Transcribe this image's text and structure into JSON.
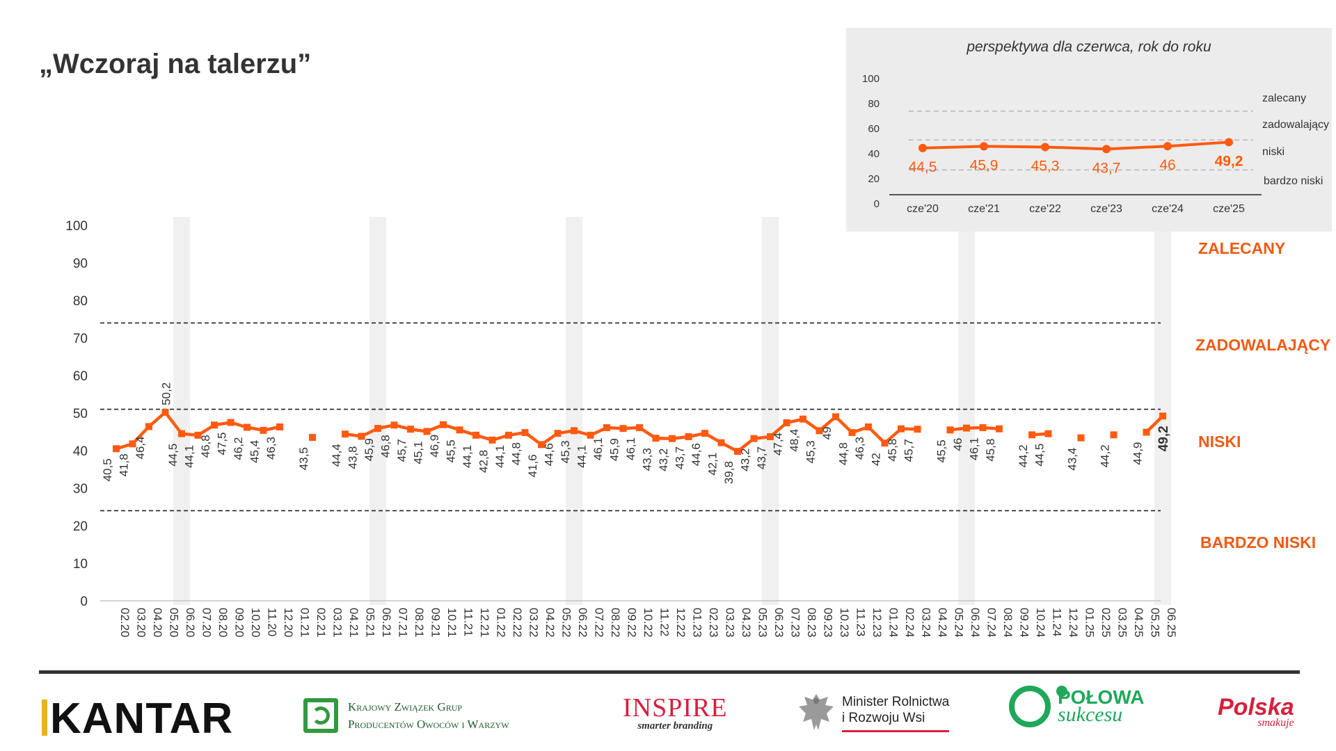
{
  "title": "„Wczoraj na talerzu”",
  "zones": {
    "zalecany": "ZALECANY",
    "zadowalajacy": "ZADOWALAJĄCY",
    "niski": "NISKI",
    "bardzo_niski": "BARDZO NISKI"
  },
  "colors": {
    "series": "#ff5a10",
    "zone_text": "#f05a12",
    "highlight_band": "#f0f0f0",
    "inset_bg": "#ececec"
  },
  "chart_data": [
    {
      "type": "line",
      "categories": [
        "02.20",
        "03.20",
        "04.20",
        "05.20",
        "06.20",
        "07.20",
        "08.20",
        "09.20",
        "10.20",
        "11.20",
        "12.20",
        "01.21",
        "02.21",
        "03.21",
        "04.21",
        "05.21",
        "06.21",
        "07.21",
        "08.21",
        "09.21",
        "10.21",
        "11.21",
        "12.21",
        "01.22",
        "02.22",
        "03.22",
        "04.22",
        "05.22",
        "06.22",
        "07.22",
        "08.22",
        "09.22",
        "10.22",
        "11.22",
        "12.22",
        "01.23",
        "02.23",
        "03.23",
        "04.23",
        "05.23",
        "06.23",
        "07.23",
        "08.23",
        "09.23",
        "10.23",
        "11.23",
        "12.23",
        "01.24",
        "02.24",
        "03.24",
        "04.24",
        "05.24",
        "06.24",
        "07.24",
        "08.24",
        "09.24",
        "10.24",
        "11.24",
        "12.24",
        "01.25",
        "02.25",
        "03.25",
        "04.25",
        "05.25",
        "06.25"
      ],
      "values": [
        40.5,
        41.8,
        46.4,
        50.2,
        44.5,
        44.1,
        46.8,
        47.5,
        46.2,
        45.4,
        46.3,
        null,
        43.5,
        null,
        44.4,
        43.8,
        45.9,
        46.8,
        45.7,
        45.1,
        46.9,
        45.5,
        44.1,
        42.8,
        44.1,
        44.8,
        41.6,
        44.6,
        45.3,
        44.1,
        46.1,
        45.9,
        46.1,
        43.3,
        43.2,
        43.7,
        44.6,
        42.1,
        39.8,
        43.2,
        43.7,
        47.4,
        48.4,
        45.3,
        49,
        44.8,
        46.3,
        42,
        45.8,
        45.7,
        null,
        45.5,
        46,
        46.1,
        45.8,
        null,
        44.2,
        44.5,
        null,
        43.4,
        null,
        44.2,
        null,
        44.9,
        49.2
      ],
      "labels": [
        "40,5",
        "41,8",
        "46,4",
        "50,2",
        "44,5",
        "44,1",
        "46,8",
        "47,5",
        "46,2",
        "45,4",
        "46,3",
        "",
        "43,5",
        "",
        "44,4",
        "43,8",
        "45,9",
        "46,8",
        "45,7",
        "45,1",
        "46,9",
        "45,5",
        "44,1",
        "42,8",
        "44,1",
        "44,8",
        "41,6",
        "44,6",
        "45,3",
        "44,1",
        "46,1",
        "45,9",
        "46,1",
        "43,3",
        "43,2",
        "43,7",
        "44,6",
        "42,1",
        "39,8",
        "43,2",
        "43,7",
        "47,4",
        "48,4",
        "45,3",
        "49",
        "44,8",
        "46,3",
        "42",
        "45,8",
        "45,7",
        "",
        "45,5",
        "46",
        "46,1",
        "45,8",
        "",
        "44,2",
        "44,5",
        "",
        "43,4",
        "",
        "44,2",
        "",
        "44,9",
        "49,2"
      ],
      "highlight_categories": [
        "06.20",
        "06.21",
        "06.22",
        "06.23",
        "06.24",
        "06.25"
      ],
      "reference_lines": [
        24,
        51,
        74
      ],
      "ylim": [
        0,
        100
      ],
      "yticks": [
        0,
        10,
        20,
        30,
        40,
        50,
        60,
        70,
        80,
        90,
        100
      ],
      "xlabel": "",
      "ylabel": "",
      "grid": false
    },
    {
      "type": "line",
      "title": "perspektywa dla czerwca, rok do roku",
      "categories": [
        "cze'20",
        "cze'21",
        "cze'22",
        "cze'23",
        "cze'24",
        "cze'25"
      ],
      "values": [
        44.5,
        45.9,
        45.3,
        43.7,
        46,
        49.2
      ],
      "labels": [
        "44,5",
        "45,9",
        "45,3",
        "43,7",
        "46",
        "49,2"
      ],
      "ylim": [
        0,
        100
      ],
      "yticks": [
        0,
        20,
        40,
        60,
        80,
        100
      ],
      "reference_lines": [
        27,
        51,
        74
      ],
      "zone_labels": [
        "zalecany",
        "zadowalający",
        "niski",
        "bardzo niski"
      ],
      "grid": false
    }
  ]
}
